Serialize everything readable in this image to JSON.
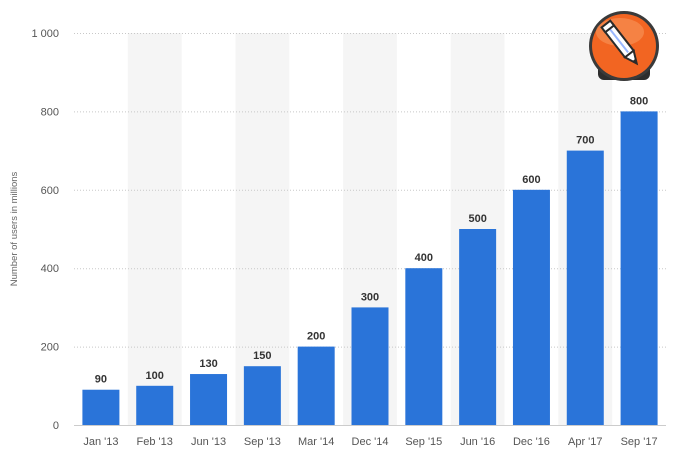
{
  "chart_data": {
    "type": "bar",
    "categories": [
      "Jan '13",
      "Feb '13",
      "Jun '13",
      "Sep '13",
      "Mar '14",
      "Dec '14",
      "Sep '15",
      "Jun '16",
      "Dec '16",
      "Apr '17",
      "Sep '17"
    ],
    "values": [
      90,
      100,
      130,
      150,
      200,
      300,
      400,
      500,
      600,
      700,
      800
    ],
    "data_labels": [
      "90",
      "100",
      "130",
      "150",
      "200",
      "300",
      "400",
      "500",
      "600",
      "700",
      "800"
    ],
    "ylabel": "Number of users in millions",
    "ylim": [
      0,
      1000
    ],
    "yticks": [
      0,
      200,
      400,
      600,
      800,
      1000
    ],
    "ytick_labels": [
      "0",
      "200",
      "400",
      "600",
      "800",
      "1 000"
    ],
    "grid": true,
    "bar_color": "#2a74d9",
    "band_color": "#f5f5f5"
  },
  "logo": {
    "icon": "pencil-edit-icon",
    "color": "#f26522"
  }
}
